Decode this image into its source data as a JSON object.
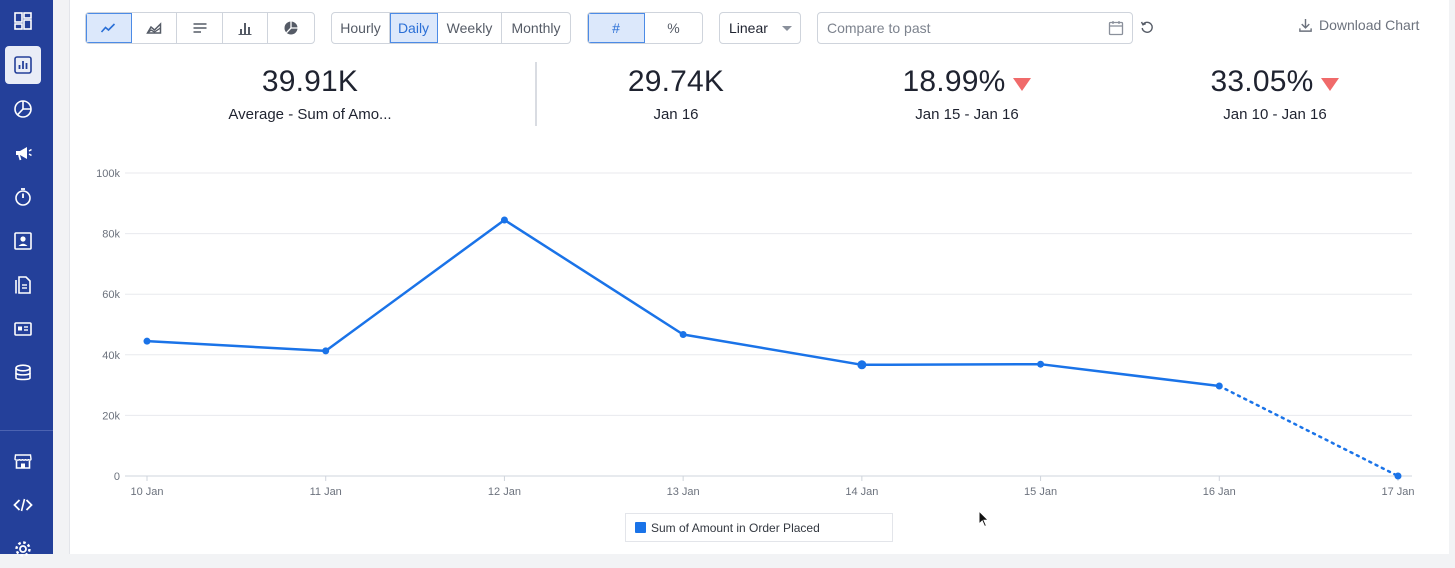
{
  "sidebar": {
    "items": [
      {
        "icon": "dashboard-icon",
        "active": false
      },
      {
        "icon": "bar-chart-icon",
        "active": true
      },
      {
        "icon": "pie-chart-icon",
        "active": false
      },
      {
        "icon": "megaphone-icon",
        "active": false
      },
      {
        "icon": "timer-icon",
        "active": false
      },
      {
        "icon": "user-profile-icon",
        "active": false
      },
      {
        "icon": "documents-icon",
        "active": false
      },
      {
        "icon": "id-card-icon",
        "active": false
      },
      {
        "icon": "database-icon",
        "active": false
      },
      {
        "icon": "store-icon",
        "active": false
      },
      {
        "icon": "code-icon",
        "active": false
      },
      {
        "icon": "gear-icon",
        "active": false
      }
    ]
  },
  "toolbar": {
    "chart_types": [
      {
        "icon": "line-chart-icon",
        "selected": true
      },
      {
        "icon": "area-chart-icon",
        "selected": false
      },
      {
        "icon": "horizontal-bars-icon",
        "selected": false
      },
      {
        "icon": "column-chart-icon",
        "selected": false
      },
      {
        "icon": "pie-chart-icon",
        "selected": false
      }
    ],
    "granularity": [
      {
        "label": "Hourly",
        "selected": false
      },
      {
        "label": "Daily",
        "selected": true
      },
      {
        "label": "Weekly",
        "selected": false
      },
      {
        "label": "Monthly",
        "selected": false
      }
    ],
    "format": [
      {
        "label": "#",
        "selected": true
      },
      {
        "label": "%",
        "selected": false
      }
    ],
    "scale_select": "Linear",
    "compare_placeholder": "Compare to past",
    "download_label": "Download Chart"
  },
  "stats": [
    {
      "value": "39.91K",
      "label": "Average - Sum of Amo...",
      "trend": "none"
    },
    {
      "value": "29.74K",
      "label": "Jan 16",
      "trend": "none"
    },
    {
      "value": "18.99%",
      "label": "Jan 15 - Jan 16",
      "trend": "down"
    },
    {
      "value": "33.05%",
      "label": "Jan 10 - Jan 16",
      "trend": "down"
    }
  ],
  "colors": {
    "accent": "#1a73e8",
    "sidebar": "#24409a",
    "down": "#f06a6a"
  },
  "chart_data": {
    "type": "line",
    "x": [
      "10 Jan",
      "11 Jan",
      "12 Jan",
      "13 Jan",
      "14 Jan",
      "15 Jan",
      "16 Jan",
      "17 Jan"
    ],
    "series": [
      {
        "name": "Sum of Amount in Order Placed",
        "values": [
          44500,
          41300,
          84500,
          46700,
          36700,
          36900,
          29700,
          0
        ],
        "dotted_from_index": 6
      }
    ],
    "y_ticks": [
      "0",
      "20k",
      "40k",
      "60k",
      "80k",
      "100k"
    ],
    "ylim": [
      0,
      100000
    ],
    "grid": true,
    "legend": "bottom-center"
  }
}
